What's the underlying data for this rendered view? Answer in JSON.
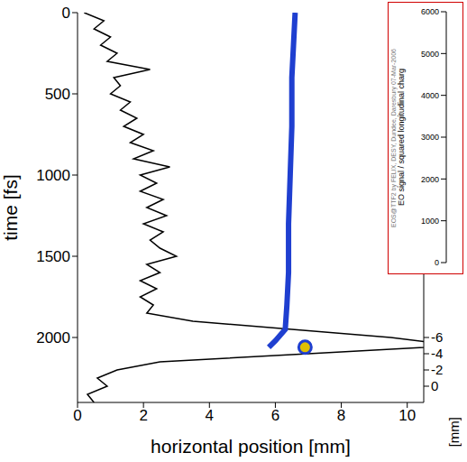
{
  "chart_data": [
    {
      "type": "line",
      "xlabel": "horizontal position [mm]",
      "ylabel": "time [fs]",
      "xlim": [
        0,
        10.5
      ],
      "xticks": [
        0,
        2,
        4,
        6,
        8,
        10
      ],
      "ylim": [
        0,
        2400
      ],
      "yticks": [
        0,
        500,
        1000,
        1500,
        2000
      ],
      "y2label": "[mm]",
      "y2lim": [
        -46,
        2
      ],
      "y2ticks": [
        -6,
        -4,
        -2,
        0
      ],
      "grid": false,
      "series": [
        {
          "color": "#000000",
          "line_style": "solid",
          "marker": "none",
          "x": [
            0.2,
            0.8,
            0.5,
            1.0,
            0.7,
            1.2,
            0.9,
            2.2,
            1.1,
            1.3,
            1.0,
            1.6,
            1.3,
            1.8,
            1.4,
            2.0,
            1.6,
            2.3,
            1.7,
            2.8,
            1.9,
            2.4,
            1.9,
            2.6,
            2.1,
            2.7,
            2.0,
            2.6,
            2.2,
            2.5,
            3.0,
            2.1,
            2.5,
            1.9,
            2.4,
            1.9,
            2.3,
            2.1,
            3.5,
            6.5,
            9.5,
            11.5,
            7.0,
            2.5,
            1.2,
            0.6,
            0.9,
            0.3,
            0.5
          ],
          "y": [
            0,
            50,
            100,
            150,
            200,
            250,
            300,
            350,
            400,
            450,
            500,
            550,
            600,
            650,
            700,
            750,
            800,
            850,
            900,
            950,
            1000,
            1050,
            1100,
            1150,
            1200,
            1250,
            1300,
            1350,
            1400,
            1450,
            1500,
            1550,
            1600,
            1650,
            1700,
            1750,
            1800,
            1850,
            1900,
            1950,
            2000,
            2050,
            2100,
            2150,
            2200,
            2250,
            2300,
            2350,
            2400
          ]
        },
        {
          "color": "#1f3fd0",
          "line_style": "solid",
          "marker": "none",
          "x": [
            6.6,
            6.55,
            6.5,
            6.5,
            6.45,
            6.4,
            6.4,
            6.35,
            6.3,
            6.0,
            5.8
          ],
          "y": [
            0,
            200,
            400,
            700,
            1000,
            1300,
            1600,
            1800,
            1950,
            2020,
            2060
          ]
        },
        {
          "color": "#e0c000",
          "line_style": "none",
          "marker": "circle",
          "x": [
            6.9
          ],
          "y": [
            2060
          ]
        }
      ]
    },
    {
      "type": "line",
      "ylabel": "EO signal / squared longitudinal charg",
      "ylim": [
        0,
        6000
      ],
      "yticks": [
        0,
        1000,
        2000,
        3000,
        4000,
        5000,
        6000
      ],
      "tick_labels": "y",
      "color": "#d00000",
      "annotations": [
        "EOS@TTF2 by FELIX, DESY, Dundee, Daresbury 07-Mar-2006"
      ],
      "series": []
    }
  ]
}
